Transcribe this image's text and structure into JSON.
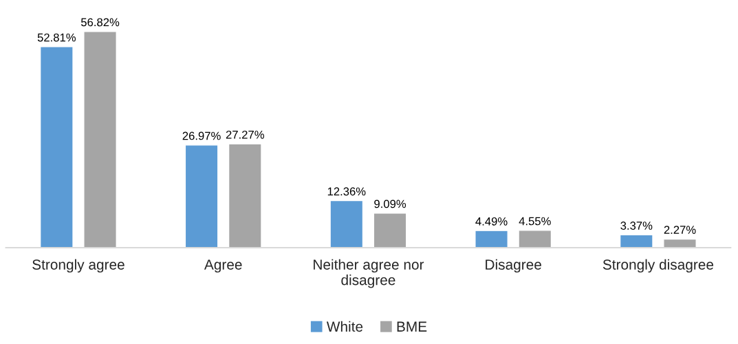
{
  "chart_data": {
    "type": "bar",
    "categories": [
      "Strongly agree",
      "Agree",
      "Neither agree nor\ndisagree",
      "Disagree",
      "Strongly disagree"
    ],
    "series": [
      {
        "name": "White",
        "color": "#5b9bd5",
        "values": [
          52.81,
          26.97,
          12.36,
          4.49,
          3.37
        ],
        "value_labels": [
          "52.81%",
          "26.97%",
          "12.36%",
          "4.49%",
          "3.37%"
        ]
      },
      {
        "name": "BME",
        "color": "#a5a5a5",
        "values": [
          56.82,
          27.27,
          9.09,
          4.55,
          2.27
        ],
        "value_labels": [
          "56.82%",
          "27.27%",
          "9.09%",
          "4.55%",
          "2.27%"
        ]
      }
    ],
    "legend": "bottom"
  }
}
